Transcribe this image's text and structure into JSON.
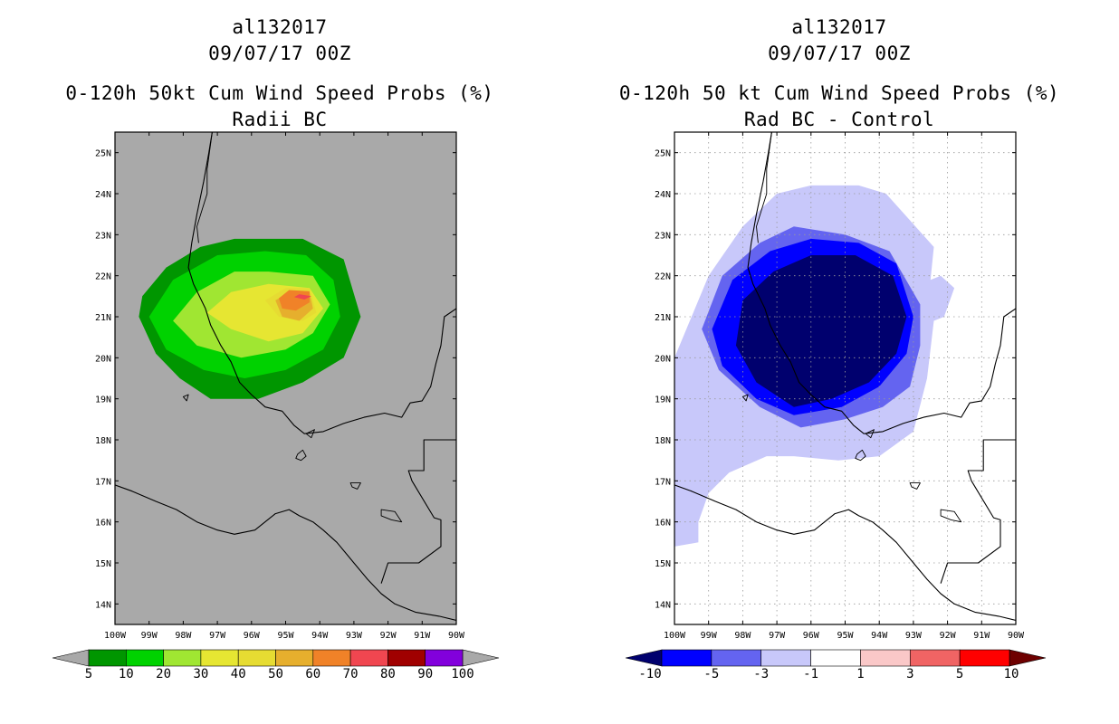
{
  "panels": [
    {
      "id": "left",
      "title_line1": "al132017",
      "title_line2": "09/07/17 00Z",
      "title_line3": "0-120h 50kt Cum Wind Speed Probs (%)",
      "title_line4": "Radii BC",
      "background": "#a9a9a9",
      "colorbar": {
        "labels": [
          "5",
          "10",
          "20",
          "30",
          "40",
          "50",
          "60",
          "70",
          "80",
          "90",
          "100"
        ],
        "colors": [
          "#009600",
          "#00d200",
          "#a0e632",
          "#e6e632",
          "#e6dc32",
          "#e6af2d",
          "#f08228",
          "#f04650",
          "#a00000",
          "#8200dc"
        ],
        "end_color_low": "#a9a9a9",
        "end_color_high": "#a9a9a9",
        "label_offset": 0
      },
      "grid": false
    },
    {
      "id": "right",
      "title_line1": "al132017",
      "title_line2": "09/07/17 00Z",
      "title_line3": "0-120h 50 kt Cum Wind Speed Probs (%)",
      "title_line4": "Rad BC - Control",
      "background": "#ffffff",
      "colorbar": {
        "labels": [
          "-10",
          "-5",
          "-3",
          "-1",
          "1",
          "3",
          "5",
          "10"
        ],
        "colors": [
          "#0000ff",
          "#6464f0",
          "#c8c8fa",
          "#ffffff",
          "#fac8c8",
          "#f06464",
          "#ff0000"
        ],
        "end_color_low": "#00006e",
        "end_color_high": "#6e0000",
        "label_offset": 1
      },
      "grid": true
    }
  ],
  "axes": {
    "xticks": [
      "100W",
      "99W",
      "98W",
      "97W",
      "96W",
      "95W",
      "94W",
      "93W",
      "92W",
      "91W",
      "90W"
    ],
    "yticks": [
      "25N",
      "24N",
      "23N",
      "22N",
      "21N",
      "20N",
      "19N",
      "18N",
      "17N",
      "16N",
      "15N",
      "14N"
    ]
  },
  "chart_data": [
    {
      "type": "heatmap",
      "title": "0-120h 50kt Cum Wind Speed Probs (%)",
      "subtitle": "Radii BC",
      "storm": "al132017",
      "valid": "09/07/17 00Z",
      "x_range": [
        -100,
        -90
      ],
      "y_range": [
        13.5,
        25.5
      ],
      "contour_levels": [
        5,
        10,
        20,
        30,
        40,
        50,
        60,
        70,
        80,
        90,
        100
      ],
      "contours": [
        {
          "level": 5,
          "color": "#009600",
          "lon": [
            -95.6,
            -94.5,
            -93.3,
            -92.8,
            -93.3,
            -94.5,
            -95.8,
            -97.2,
            -98.1,
            -98.8,
            -99.3,
            -99.2,
            -98.5,
            -97.5,
            -96.5
          ],
          "lat": [
            22.9,
            22.9,
            22.4,
            21.0,
            20.0,
            19.4,
            19.0,
            19.0,
            19.5,
            20.1,
            21.0,
            21.5,
            22.2,
            22.7,
            22.9
          ]
        },
        {
          "level": 10,
          "color": "#00d200",
          "lon": [
            -95.6,
            -94.4,
            -93.6,
            -93.4,
            -93.9,
            -95.0,
            -96.2,
            -97.4,
            -98.5,
            -99.0,
            -98.3,
            -97.0
          ],
          "lat": [
            22.6,
            22.5,
            21.9,
            21.0,
            20.2,
            19.7,
            19.5,
            19.7,
            20.2,
            21.0,
            21.9,
            22.5
          ]
        },
        {
          "level": 20,
          "color": "#a0e632",
          "lon": [
            -95.5,
            -94.2,
            -93.7,
            -94.2,
            -95.0,
            -96.3,
            -97.6,
            -98.3,
            -97.6,
            -96.5
          ],
          "lat": [
            22.1,
            22.0,
            21.3,
            20.6,
            20.2,
            20.0,
            20.3,
            20.9,
            21.6,
            22.1
          ]
        },
        {
          "level": 30,
          "color": "#e6e632",
          "lon": [
            -95.5,
            -94.3,
            -93.9,
            -94.5,
            -95.5,
            -96.6,
            -97.3,
            -96.6
          ],
          "lat": [
            21.8,
            21.7,
            21.2,
            20.6,
            20.4,
            20.7,
            21.1,
            21.6
          ]
        },
        {
          "level": 40,
          "color": "#e6dc32",
          "lon": [
            -95.0,
            -94.3,
            -94.1,
            -94.5,
            -95.2,
            -95.6
          ],
          "lat": [
            21.7,
            21.7,
            21.1,
            20.9,
            21.0,
            21.4
          ]
        },
        {
          "level": 50,
          "color": "#e6af2d",
          "lon": [
            -94.9,
            -94.3,
            -94.2,
            -94.6,
            -95.1,
            -95.3
          ],
          "lat": [
            21.6,
            21.6,
            21.2,
            20.9,
            21.0,
            21.4
          ]
        },
        {
          "level": 60,
          "color": "#f08228",
          "lon": [
            -94.9,
            -94.3,
            -94.3,
            -94.7,
            -95.1,
            -95.2
          ],
          "lat": [
            21.65,
            21.62,
            21.35,
            21.15,
            21.2,
            21.45
          ]
        },
        {
          "level": 70,
          "color": "#f04650",
          "lon": [
            -94.6,
            -94.25,
            -94.45,
            -94.75
          ],
          "lat": [
            21.55,
            21.5,
            21.42,
            21.48
          ]
        }
      ]
    },
    {
      "type": "heatmap",
      "title": "0-120h 50 kt Cum Wind Speed Probs (%)",
      "subtitle": "Rad BC - Control",
      "storm": "al132017",
      "valid": "09/07/17 00Z",
      "x_range": [
        -100,
        -90
      ],
      "y_range": [
        13.5,
        25.5
      ],
      "contour_levels": [
        -10,
        -5,
        -3,
        -1,
        1,
        3,
        5,
        10
      ],
      "contours": [
        {
          "level": -1,
          "color": "#c8c8fa",
          "lon": [
            -97.0,
            -96.0,
            -94.6,
            -93.8,
            -92.4,
            -92.5,
            -92.2,
            -91.8,
            -92.1,
            -92.4,
            -92.6,
            -93.0,
            -94.0,
            -95.2,
            -96.5,
            -97.3,
            -98.4,
            -99.0,
            -99.3,
            -99.3,
            -100.0,
            -100.0,
            -99.0,
            -98.0
          ],
          "lat": [
            24.0,
            24.2,
            24.2,
            24.0,
            22.7,
            21.9,
            22.0,
            21.7,
            21.0,
            20.9,
            19.5,
            18.2,
            17.6,
            17.5,
            17.6,
            17.6,
            17.2,
            16.7,
            16.0,
            15.5,
            15.4,
            20.0,
            22.0,
            23.2
          ]
        },
        {
          "level": -3,
          "color": "#6464f0",
          "lon": [
            -96.5,
            -95.0,
            -93.7,
            -92.8,
            -92.8,
            -93.1,
            -93.9,
            -95.0,
            -96.3,
            -97.5,
            -98.7,
            -99.2,
            -98.6,
            -97.5
          ],
          "lat": [
            23.2,
            23.0,
            22.6,
            21.3,
            20.3,
            19.3,
            18.8,
            18.5,
            18.3,
            18.8,
            19.7,
            20.7,
            22.0,
            22.8
          ]
        },
        {
          "level": -5,
          "color": "#0000ff",
          "lon": [
            -96.0,
            -94.6,
            -93.5,
            -93.0,
            -93.2,
            -94.0,
            -95.1,
            -96.5,
            -97.6,
            -98.6,
            -98.9,
            -98.3,
            -97.2
          ],
          "lat": [
            22.9,
            22.8,
            22.3,
            21.0,
            20.1,
            19.3,
            18.8,
            18.6,
            19.0,
            19.8,
            20.7,
            21.9,
            22.6
          ]
        },
        {
          "level": -10,
          "color": "#00006e",
          "lon": [
            -96.0,
            -94.7,
            -93.6,
            -93.2,
            -93.5,
            -94.3,
            -95.4,
            -96.5,
            -97.6,
            -98.2,
            -98.0,
            -97.1
          ],
          "lat": [
            22.5,
            22.5,
            22.0,
            21.0,
            20.1,
            19.4,
            19.0,
            18.8,
            19.4,
            20.3,
            21.4,
            22.1
          ]
        }
      ]
    }
  ]
}
